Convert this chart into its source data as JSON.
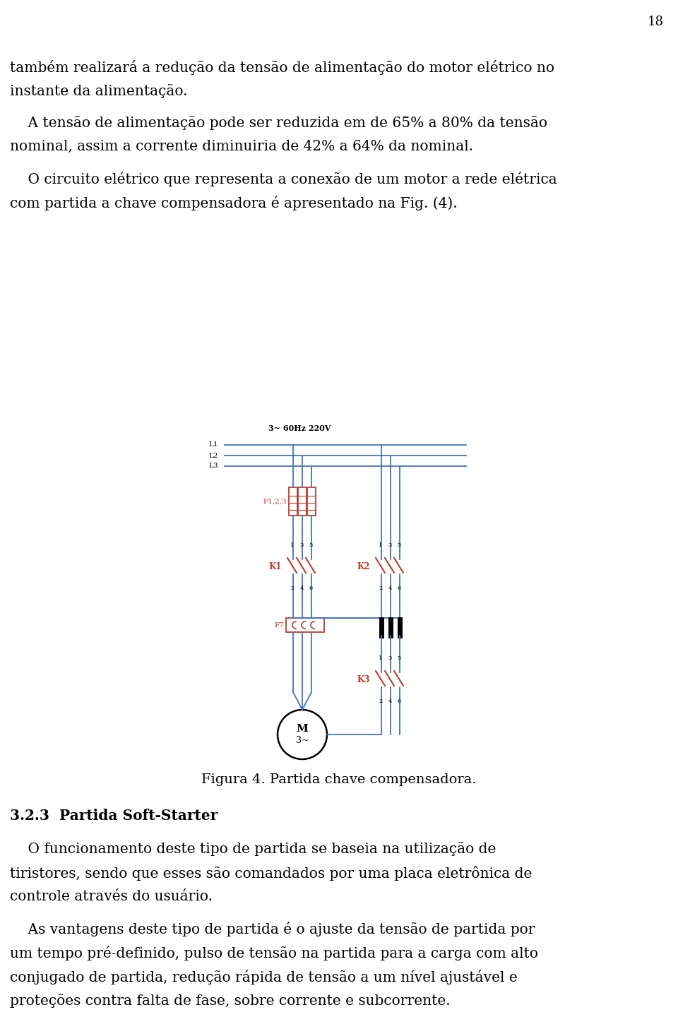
{
  "page_number": "18",
  "background_color": "#ffffff",
  "text_color": "#000000",
  "blue_color": "#4472c4",
  "red_color": "#c0392b",
  "line1a": "também realizará a redução da tensão de alimentação do motor elétrico no",
  "line1b": "instante da alimentação.",
  "line2a": "    A tensão de alimentação pode ser reduzida em de 65% a 80% da tensão",
  "line2b": "nominal, assim a corrente diminuiria de 42% a 64% da nominal.",
  "line3a": "    O circuito elétrico que representa a conexão de um motor a rede elétrica",
  "line3b": "com partida a chave compensadora é apresentado na Fig. (4).",
  "figure_caption": "Figura 4. Partida chave compensadora.",
  "section_header": "3.2.3  Partida Soft-Starter",
  "line4a": "    O funcionamento deste tipo de partida se baseia na utilização de",
  "line4b": "tiristores, sendo que esses são comandados por uma placa eletrônica de",
  "line4c": "controle através do usuário.",
  "line5a": "    As vantagens deste tipo de partida é o ajuste da tensão de partida por",
  "line5b": "um tempo pré-definido, pulso de tensão na partida para a carga com alto",
  "line5c": "conjugado de partida, redução rápida de tensão a um nível ajustável e",
  "line5d": "proteções contra falta de fase, sobre corrente e subcorrente.",
  "circuit_label_top": "3~ 60Hz 220V",
  "label_L1": "L1",
  "label_L2": "L2",
  "label_L3": "L3",
  "label_F123": "F1,2,3",
  "label_K1": "K1",
  "label_K2": "K2",
  "label_F7": "F7",
  "label_K3": "K3",
  "label_M": "M",
  "label_3ph": "3~"
}
